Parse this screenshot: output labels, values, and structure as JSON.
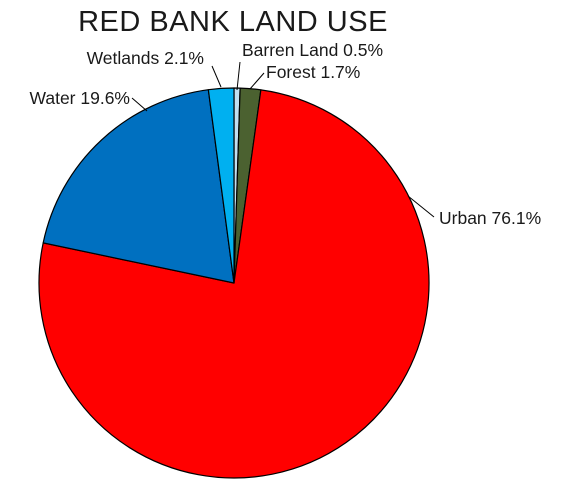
{
  "chart_data": {
    "type": "pie",
    "title": "RED BANK LAND USE",
    "slices": [
      {
        "name": "Barren Land",
        "value": 0.5,
        "label": "Barren Land 0.5%",
        "color": "#c2dff0"
      },
      {
        "name": "Forest",
        "value": 1.7,
        "label": "Forest 1.7%",
        "color": "#4b6130"
      },
      {
        "name": "Urban",
        "value": 76.1,
        "label": "Urban 76.1%",
        "color": "#ff0000"
      },
      {
        "name": "Water",
        "value": 19.6,
        "label": "Water 19.6%",
        "color": "#0070c0"
      },
      {
        "name": "Wetlands",
        "value": 2.1,
        "label": "Wetlands 2.1%",
        "color": "#00b0f0"
      }
    ],
    "legend": "none",
    "labels": "outside with leader lines"
  }
}
